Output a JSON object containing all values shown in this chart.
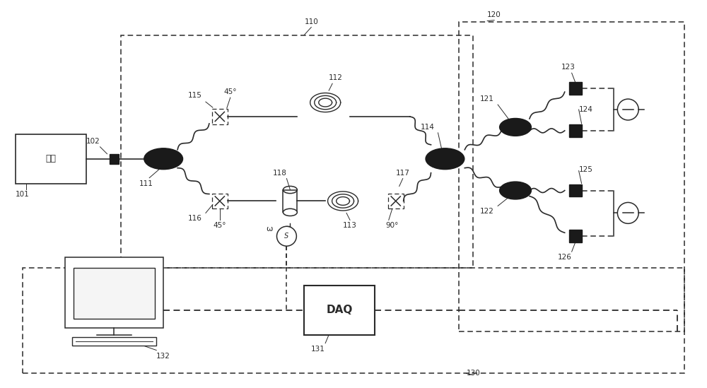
{
  "bg_color": "#ffffff",
  "lc": "#2a2a2a",
  "fig_width": 10.0,
  "fig_height": 5.49,
  "dpi": 100,
  "xlim": [
    0,
    100
  ],
  "ylim": [
    0,
    55
  ]
}
